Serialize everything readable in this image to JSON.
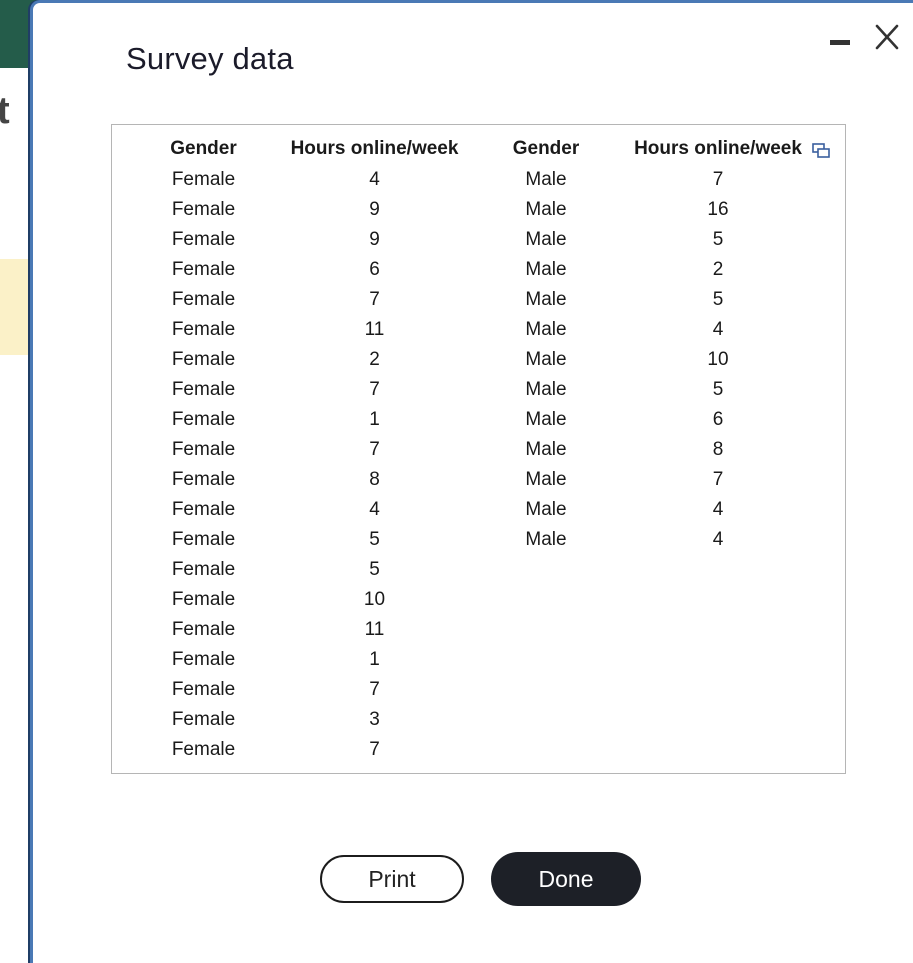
{
  "background": {
    "partial_letter": "t",
    "header_color": "#245c4a",
    "highlight_color": "#fbf1c8"
  },
  "dialog": {
    "title": "Survey data",
    "minimize_icon": "minimize-icon",
    "close_icon": "close-icon",
    "border_color": "#4a79b5"
  },
  "table": {
    "headers": [
      "Gender",
      "Hours online/week",
      "Gender",
      "Hours online/week"
    ],
    "copy_icon": "copy-icon",
    "female_rows": [
      [
        "Female",
        "4"
      ],
      [
        "Female",
        "9"
      ],
      [
        "Female",
        "9"
      ],
      [
        "Female",
        "6"
      ],
      [
        "Female",
        "7"
      ],
      [
        "Female",
        "11"
      ],
      [
        "Female",
        "2"
      ],
      [
        "Female",
        "7"
      ],
      [
        "Female",
        "1"
      ],
      [
        "Female",
        "7"
      ],
      [
        "Female",
        "8"
      ],
      [
        "Female",
        "4"
      ],
      [
        "Female",
        "5"
      ],
      [
        "Female",
        "5"
      ],
      [
        "Female",
        "10"
      ],
      [
        "Female",
        "11"
      ],
      [
        "Female",
        "1"
      ],
      [
        "Female",
        "7"
      ],
      [
        "Female",
        "3"
      ],
      [
        "Female",
        "7"
      ]
    ],
    "male_rows": [
      [
        "Male",
        "7"
      ],
      [
        "Male",
        "16"
      ],
      [
        "Male",
        "5"
      ],
      [
        "Male",
        "2"
      ],
      [
        "Male",
        "5"
      ],
      [
        "Male",
        "4"
      ],
      [
        "Male",
        "10"
      ],
      [
        "Male",
        "5"
      ],
      [
        "Male",
        "6"
      ],
      [
        "Male",
        "8"
      ],
      [
        "Male",
        "7"
      ],
      [
        "Male",
        "4"
      ],
      [
        "Male",
        "4"
      ]
    ]
  },
  "buttons": {
    "print_label": "Print",
    "done_label": "Done",
    "done_color": "#1d2027"
  }
}
